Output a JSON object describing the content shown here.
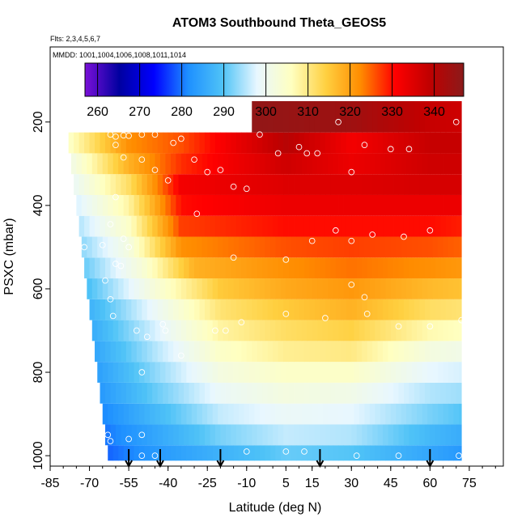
{
  "chart_data": {
    "type": "heatmap",
    "title": "ATOM3 Southbound Theta_GEOS5",
    "flights_note": "Flts: 2,3,4,5,6,7",
    "dates_note": "MMDD: 1001,1004,1006,1008,1011,1014",
    "xlabel": "Latitude (deg N)",
    "ylabel": "PSXC (mbar)",
    "xlim": [
      -85,
      88
    ],
    "ylim": [
      1025,
      20
    ],
    "x_ticks": [
      -85,
      -70,
      -55,
      -40,
      -25,
      -10,
      5,
      15,
      30,
      45,
      60,
      75
    ],
    "y_ticks": [
      200,
      400,
      600,
      800,
      1000
    ],
    "colorbar": {
      "range": [
        257,
        347
      ],
      "ticks": [
        260,
        270,
        280,
        290,
        300,
        310,
        320,
        330,
        340
      ],
      "colors": [
        "#7a10d8",
        "#0000a0",
        "#0000ff",
        "#1e90ff",
        "#4fc3f7",
        "#e8f7ff",
        "#ffffc0",
        "#ffd040",
        "#ff8c00",
        "#ff0000",
        "#c00000",
        "#8b1a1a"
      ]
    },
    "pressure_levels": [
      1000,
      950,
      900,
      850,
      800,
      750,
      700,
      650,
      600,
      550,
      500,
      450,
      400,
      350,
      300,
      250,
      200
    ],
    "profile_rows": [
      {
        "p": 1000,
        "lat_start": -63,
        "lat_end": 72,
        "theta": [
          [
            -63,
            279
          ],
          [
            -45,
            283
          ],
          [
            -20,
            287
          ],
          [
            5,
            291
          ],
          [
            30,
            290
          ],
          [
            60,
            285
          ],
          [
            72,
            283
          ]
        ]
      },
      {
        "p": 950,
        "lat_start": -64,
        "lat_end": 72,
        "theta": [
          [
            -64,
            280
          ],
          [
            -45,
            285
          ],
          [
            -20,
            292
          ],
          [
            5,
            296
          ],
          [
            30,
            295
          ],
          [
            60,
            288
          ],
          [
            72,
            286
          ]
        ]
      },
      {
        "p": 900,
        "lat_start": -65,
        "lat_end": 72,
        "theta": [
          [
            -65,
            281
          ],
          [
            -45,
            288
          ],
          [
            -20,
            296
          ],
          [
            5,
            299
          ],
          [
            30,
            298
          ],
          [
            60,
            292
          ],
          [
            72,
            290
          ]
        ]
      },
      {
        "p": 850,
        "lat_start": -66,
        "lat_end": 72,
        "theta": [
          [
            -66,
            283
          ],
          [
            -45,
            291
          ],
          [
            -20,
            299
          ],
          [
            5,
            302
          ],
          [
            30,
            301
          ],
          [
            60,
            295
          ],
          [
            72,
            294
          ]
        ]
      },
      {
        "p": 800,
        "lat_start": -67,
        "lat_end": 72,
        "theta": [
          [
            -67,
            284
          ],
          [
            -45,
            293
          ],
          [
            -20,
            302
          ],
          [
            5,
            305
          ],
          [
            30,
            305
          ],
          [
            60,
            298
          ],
          [
            72,
            297
          ]
        ]
      },
      {
        "p": 750,
        "lat_start": -68,
        "lat_end": 72,
        "theta": [
          [
            -68,
            285
          ],
          [
            -45,
            295
          ],
          [
            -20,
            305
          ],
          [
            5,
            309
          ],
          [
            30,
            310
          ],
          [
            60,
            302
          ],
          [
            72,
            301
          ]
        ]
      },
      {
        "p": 700,
        "lat_start": -69,
        "lat_end": 72,
        "theta": [
          [
            -69,
            286
          ],
          [
            -45,
            297
          ],
          [
            -20,
            308
          ],
          [
            5,
            312
          ],
          [
            30,
            314
          ],
          [
            60,
            307
          ],
          [
            72,
            306
          ]
        ]
      },
      {
        "p": 650,
        "lat_start": -70,
        "lat_end": 72,
        "theta": [
          [
            -70,
            287
          ],
          [
            -45,
            299
          ],
          [
            -20,
            311
          ],
          [
            5,
            315
          ],
          [
            30,
            318
          ],
          [
            60,
            312
          ],
          [
            72,
            311
          ]
        ]
      },
      {
        "p": 600,
        "lat_start": -71,
        "lat_end": 72,
        "theta": [
          [
            -71,
            289
          ],
          [
            -45,
            303
          ],
          [
            -20,
            315
          ],
          [
            5,
            319
          ],
          [
            30,
            321
          ],
          [
            60,
            317
          ],
          [
            72,
            316
          ]
        ]
      },
      {
        "p": 550,
        "lat_start": -72,
        "lat_end": 72,
        "theta": [
          [
            -72,
            291
          ],
          [
            -50,
            303
          ],
          [
            -30,
            318
          ],
          [
            5,
            322
          ],
          [
            30,
            324
          ],
          [
            60,
            322
          ],
          [
            72,
            321
          ]
        ]
      },
      {
        "p": 500,
        "lat_start": -73,
        "lat_end": 72,
        "theta": [
          [
            -73,
            293
          ],
          [
            -55,
            302
          ],
          [
            -35,
            322
          ],
          [
            5,
            326
          ],
          [
            30,
            327
          ],
          [
            60,
            326
          ],
          [
            72,
            325
          ]
        ]
      },
      {
        "p": 450,
        "lat_start": -74,
        "lat_end": 72,
        "theta": [
          [
            -74,
            295
          ],
          [
            -55,
            305
          ],
          [
            -35,
            327
          ],
          [
            5,
            330
          ],
          [
            30,
            330
          ],
          [
            60,
            330
          ],
          [
            72,
            329
          ]
        ]
      },
      {
        "p": 400,
        "lat_start": -75,
        "lat_end": 72,
        "theta": [
          [
            -75,
            297
          ],
          [
            -55,
            308
          ],
          [
            -35,
            330
          ],
          [
            5,
            333
          ],
          [
            30,
            333
          ],
          [
            60,
            333
          ],
          [
            72,
            333
          ]
        ]
      },
      {
        "p": 350,
        "lat_start": -76,
        "lat_end": 72,
        "theta": [
          [
            -76,
            299
          ],
          [
            -55,
            312
          ],
          [
            -35,
            332
          ],
          [
            5,
            335
          ],
          [
            30,
            335
          ],
          [
            60,
            336
          ],
          [
            72,
            336
          ]
        ]
      },
      {
        "p": 300,
        "lat_start": -77,
        "lat_end": 72,
        "theta": [
          [
            -77,
            301
          ],
          [
            -55,
            318
          ],
          [
            -35,
            328
          ],
          [
            5,
            337
          ],
          [
            30,
            333
          ],
          [
            60,
            337
          ],
          [
            72,
            337
          ]
        ]
      },
      {
        "p": 250,
        "lat_start": -78,
        "lat_end": 72,
        "theta": [
          [
            -78,
            305
          ],
          [
            -55,
            322
          ],
          [
            -35,
            326
          ],
          [
            5,
            340
          ],
          [
            30,
            332
          ],
          [
            60,
            338
          ],
          [
            72,
            338
          ]
        ]
      },
      {
        "p": 200,
        "lat_start": -8,
        "lat_end": 72,
        "theta": [
          [
            -8,
            346
          ],
          [
            30,
            344
          ],
          [
            60,
            338
          ],
          [
            72,
            337
          ]
        ]
      }
    ],
    "observations": [
      {
        "lat": -62,
        "p": 230
      },
      {
        "lat": -60,
        "p": 235
      },
      {
        "lat": -57,
        "p": 232
      },
      {
        "lat": -55,
        "p": 233
      },
      {
        "lat": -50,
        "p": 230
      },
      {
        "lat": -45,
        "p": 230
      },
      {
        "lat": -35,
        "p": 240
      },
      {
        "lat": -38,
        "p": 250
      },
      {
        "lat": -60,
        "p": 255
      },
      {
        "lat": -57,
        "p": 285
      },
      {
        "lat": -50,
        "p": 290
      },
      {
        "lat": -30,
        "p": 290
      },
      {
        "lat": -45,
        "p": 315
      },
      {
        "lat": -25,
        "p": 320
      },
      {
        "lat": -20,
        "p": 315
      },
      {
        "lat": -10,
        "p": 200
      },
      {
        "lat": -5,
        "p": 230
      },
      {
        "lat": 2,
        "p": 275
      },
      {
        "lat": 10,
        "p": 260
      },
      {
        "lat": 13,
        "p": 275
      },
      {
        "lat": 17,
        "p": 275
      },
      {
        "lat": 25,
        "p": 200
      },
      {
        "lat": 35,
        "p": 255
      },
      {
        "lat": 45,
        "p": 265
      },
      {
        "lat": 52,
        "p": 265
      },
      {
        "lat": 70,
        "p": 200
      },
      {
        "lat": -15,
        "p": 355
      },
      {
        "lat": -10,
        "p": 360
      },
      {
        "lat": 30,
        "p": 320
      },
      {
        "lat": -40,
        "p": 340
      },
      {
        "lat": -60,
        "p": 380
      },
      {
        "lat": -72,
        "p": 500
      },
      {
        "lat": -65,
        "p": 495
      },
      {
        "lat": -57,
        "p": 480
      },
      {
        "lat": -55,
        "p": 500
      },
      {
        "lat": -62,
        "p": 445
      },
      {
        "lat": -29,
        "p": 420
      },
      {
        "lat": -15,
        "p": 525
      },
      {
        "lat": 15,
        "p": 485
      },
      {
        "lat": 24,
        "p": 460
      },
      {
        "lat": 30,
        "p": 485
      },
      {
        "lat": 38,
        "p": 470
      },
      {
        "lat": 50,
        "p": 475
      },
      {
        "lat": 60,
        "p": 460
      },
      {
        "lat": 5,
        "p": 530
      },
      {
        "lat": -60,
        "p": 540
      },
      {
        "lat": -58,
        "p": 545
      },
      {
        "lat": -64,
        "p": 580
      },
      {
        "lat": -62,
        "p": 625
      },
      {
        "lat": -61,
        "p": 665
      },
      {
        "lat": -52,
        "p": 700
      },
      {
        "lat": -48,
        "p": 715
      },
      {
        "lat": -41,
        "p": 700
      },
      {
        "lat": -42,
        "p": 685
      },
      {
        "lat": -35,
        "p": 760
      },
      {
        "lat": -22,
        "p": 700
      },
      {
        "lat": -18,
        "p": 700
      },
      {
        "lat": -12,
        "p": 680
      },
      {
        "lat": 5,
        "p": 660
      },
      {
        "lat": 20,
        "p": 670
      },
      {
        "lat": 30,
        "p": 590
      },
      {
        "lat": 35,
        "p": 620
      },
      {
        "lat": 36,
        "p": 660
      },
      {
        "lat": 48,
        "p": 690
      },
      {
        "lat": 60,
        "p": 690
      },
      {
        "lat": 72,
        "p": 675
      },
      {
        "lat": -50,
        "p": 800
      },
      {
        "lat": -63,
        "p": 950
      },
      {
        "lat": -62,
        "p": 965
      },
      {
        "lat": -55,
        "p": 960
      },
      {
        "lat": -50,
        "p": 950
      },
      {
        "lat": -45,
        "p": 1000
      },
      {
        "lat": -50,
        "p": 1000
      },
      {
        "lat": -10,
        "p": 990
      },
      {
        "lat": 5,
        "p": 990
      },
      {
        "lat": 12,
        "p": 990
      },
      {
        "lat": 32,
        "p": 1000
      },
      {
        "lat": 48,
        "p": 1000
      },
      {
        "lat": 71,
        "p": 1000
      }
    ],
    "arrows_lat": [
      -55,
      -43,
      -20,
      18,
      60
    ]
  }
}
